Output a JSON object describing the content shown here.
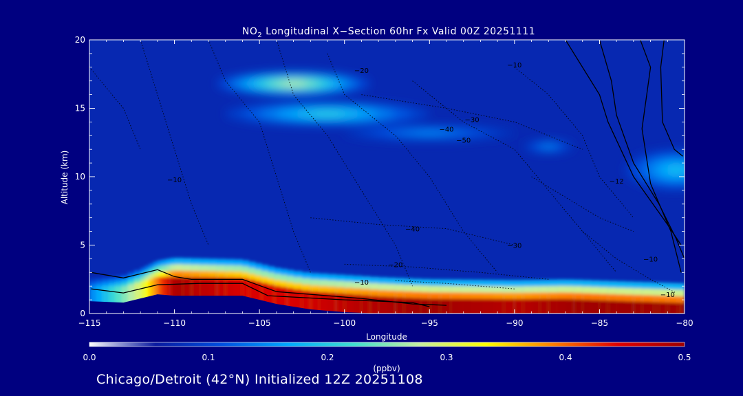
{
  "chart_data": {
    "type": "heatmap",
    "title_prefix": "NO",
    "title_sub": "2",
    "title_rest": " Longitudinal X−Section 60hr  Fx Valid 00Z 20251111",
    "xlabel": "Longitude",
    "ylabel": "Altitude (km)",
    "xlim": [
      -115,
      -80
    ],
    "ylim": [
      0,
      20
    ],
    "x_ticks": [
      -115,
      -110,
      -105,
      -100,
      -95,
      -90,
      -85,
      -80
    ],
    "x_tick_labels": [
      "−115",
      "−110",
      "−105",
      "−100",
      "−95",
      "−90",
      "−85",
      "−80"
    ],
    "y_ticks": [
      0,
      5,
      10,
      15,
      20
    ],
    "y_tick_labels": [
      "0",
      "5",
      "10",
      "15",
      "20"
    ],
    "colorbar": {
      "label": "(ppbv)",
      "range": [
        0.0,
        0.5
      ],
      "ticks": [
        0.0,
        0.1,
        0.2,
        0.3,
        0.4,
        0.5
      ],
      "tick_labels": [
        "0.0",
        "0.1",
        "0.2",
        "0.3",
        "0.4",
        "0.5"
      ],
      "colors": [
        "#ffffff",
        "#0a1aa0",
        "#0050e0",
        "#00a8ff",
        "#40e0d0",
        "#c8f0a0",
        "#ffff00",
        "#ff8000",
        "#e00000",
        "#a00000"
      ]
    },
    "background_value": 0.07,
    "plumes": [
      {
        "lon": -103,
        "alt": 16.8,
        "value": 0.28,
        "half_width_lon": 4.5,
        "half_width_alt": 0.9
      },
      {
        "lon": -101,
        "alt": 14.6,
        "value": 0.21,
        "half_width_lon": 6,
        "half_width_alt": 0.9
      },
      {
        "lon": -95,
        "alt": 13.2,
        "value": 0.15,
        "half_width_lon": 5,
        "half_width_alt": 0.6
      },
      {
        "lon": -88,
        "alt": 12.2,
        "value": 0.15,
        "half_width_lon": 1.5,
        "half_width_alt": 0.5
      },
      {
        "lon": -80.5,
        "alt": 10.5,
        "value": 0.19,
        "half_width_lon": 3,
        "half_width_alt": 1.5
      }
    ],
    "surface_layer": [
      {
        "lon": -115,
        "value": 0.14
      },
      {
        "lon": -112,
        "value": 0.3
      },
      {
        "lon": -110,
        "value": 0.49
      },
      {
        "lon": -106,
        "value": 0.45
      },
      {
        "lon": -103,
        "value": 0.45
      },
      {
        "lon": -99,
        "value": 0.48
      },
      {
        "lon": -95,
        "value": 0.5
      },
      {
        "lon": -90,
        "value": 0.48
      },
      {
        "lon": -86,
        "value": 0.5
      },
      {
        "lon": -82,
        "value": 0.5
      },
      {
        "lon": -80,
        "value": 0.5
      }
    ],
    "terrain_height_km": [
      {
        "lon": -115,
        "alt": 1.8
      },
      {
        "lon": -113,
        "alt": 1.7
      },
      {
        "lon": -111,
        "alt": 2.3
      },
      {
        "lon": -110,
        "alt": 2.2
      },
      {
        "lon": -108,
        "alt": 2.2
      },
      {
        "lon": -106,
        "alt": 2.2
      },
      {
        "lon": -104,
        "alt": 1.6
      },
      {
        "lon": -102,
        "alt": 1.2
      },
      {
        "lon": -100,
        "alt": 1.0
      },
      {
        "lon": -98,
        "alt": 0.8
      },
      {
        "lon": -95,
        "alt": 0.6
      },
      {
        "lon": -92,
        "alt": 0.6
      },
      {
        "lon": -90,
        "alt": 0.6
      },
      {
        "lon": -87,
        "alt": 0.6
      },
      {
        "lon": -85,
        "alt": 0.5
      },
      {
        "lon": -80,
        "alt": 0.3
      }
    ],
    "contour_labels": [
      {
        "text": "−20",
        "lon": -99,
        "alt": 17.6
      },
      {
        "text": "−10",
        "lon": -90,
        "alt": 18.0
      },
      {
        "text": "−30",
        "lon": -92.5,
        "alt": 14.0
      },
      {
        "text": "−40",
        "lon": -94,
        "alt": 13.3
      },
      {
        "text": "−50",
        "lon": -93,
        "alt": 12.5
      },
      {
        "text": "−10",
        "lon": -110,
        "alt": 9.6
      },
      {
        "text": "−40",
        "lon": -96,
        "alt": 6.0
      },
      {
        "text": "−30",
        "lon": -90,
        "alt": 4.8
      },
      {
        "text": "−20",
        "lon": -97,
        "alt": 3.4
      },
      {
        "text": "−10",
        "lon": -99,
        "alt": 2.1
      },
      {
        "text": "−10",
        "lon": -82,
        "alt": 3.8
      },
      {
        "text": "−10",
        "lon": -81,
        "alt": 1.2
      },
      {
        "text": "−12",
        "lon": -84,
        "alt": 9.5
      }
    ],
    "contour_lines_solid": [
      [
        {
          "lon": -114.9,
          "alt": 3.0
        },
        {
          "lon": -113,
          "alt": 2.6
        },
        {
          "lon": -111,
          "alt": 3.2
        },
        {
          "lon": -110,
          "alt": 2.7
        },
        {
          "lon": -109,
          "alt": 2.5
        },
        {
          "lon": -106,
          "alt": 2.5
        },
        {
          "lon": -104,
          "alt": 1.6
        },
        {
          "lon": -99,
          "alt": 1.1
        },
        {
          "lon": -96,
          "alt": 0.7
        },
        {
          "lon": -94,
          "alt": 0.6
        }
      ],
      [
        {
          "lon": -114.9,
          "alt": 1.8
        },
        {
          "lon": -113,
          "alt": 1.5
        },
        {
          "lon": -111,
          "alt": 2.1
        },
        {
          "lon": -108.5,
          "alt": 2.2
        },
        {
          "lon": -106,
          "alt": 2.2
        },
        {
          "lon": -104.5,
          "alt": 1.3
        },
        {
          "lon": -100,
          "alt": 1.0
        },
        {
          "lon": -96,
          "alt": 0.8
        },
        {
          "lon": -95,
          "alt": 0.5
        }
      ],
      [
        {
          "lon": -82.6,
          "alt": 20
        },
        {
          "lon": -82.0,
          "alt": 18.0
        },
        {
          "lon": -82.5,
          "alt": 13.5
        },
        {
          "lon": -82.0,
          "alt": 9.5
        },
        {
          "lon": -80.8,
          "alt": 6.0
        },
        {
          "lon": -80.2,
          "alt": 3.0
        }
      ],
      [
        {
          "lon": -85.0,
          "alt": 20
        },
        {
          "lon": -84.3,
          "alt": 17.0
        },
        {
          "lon": -84.0,
          "alt": 14.5
        },
        {
          "lon": -83.0,
          "alt": 11.0
        },
        {
          "lon": -81.5,
          "alt": 8.0
        },
        {
          "lon": -80.5,
          "alt": 5.5
        },
        {
          "lon": -80.0,
          "alt": 4.0
        }
      ],
      [
        {
          "lon": -87.0,
          "alt": 20
        },
        {
          "lon": -85.0,
          "alt": 16.0
        },
        {
          "lon": -84.5,
          "alt": 14.0
        },
        {
          "lon": -83.0,
          "alt": 10.0
        },
        {
          "lon": -81.0,
          "alt": 6.5
        },
        {
          "lon": -80.2,
          "alt": 5.0
        }
      ],
      [
        {
          "lon": -81.2,
          "alt": 20
        },
        {
          "lon": -81.4,
          "alt": 18.0
        },
        {
          "lon": -81.3,
          "alt": 14.0
        },
        {
          "lon": -80.6,
          "alt": 12.0
        },
        {
          "lon": -80.1,
          "alt": 11.5
        }
      ]
    ]
  },
  "footer_text": "Chicago/Detroit (42°N) Initialized 12Z 20251108"
}
